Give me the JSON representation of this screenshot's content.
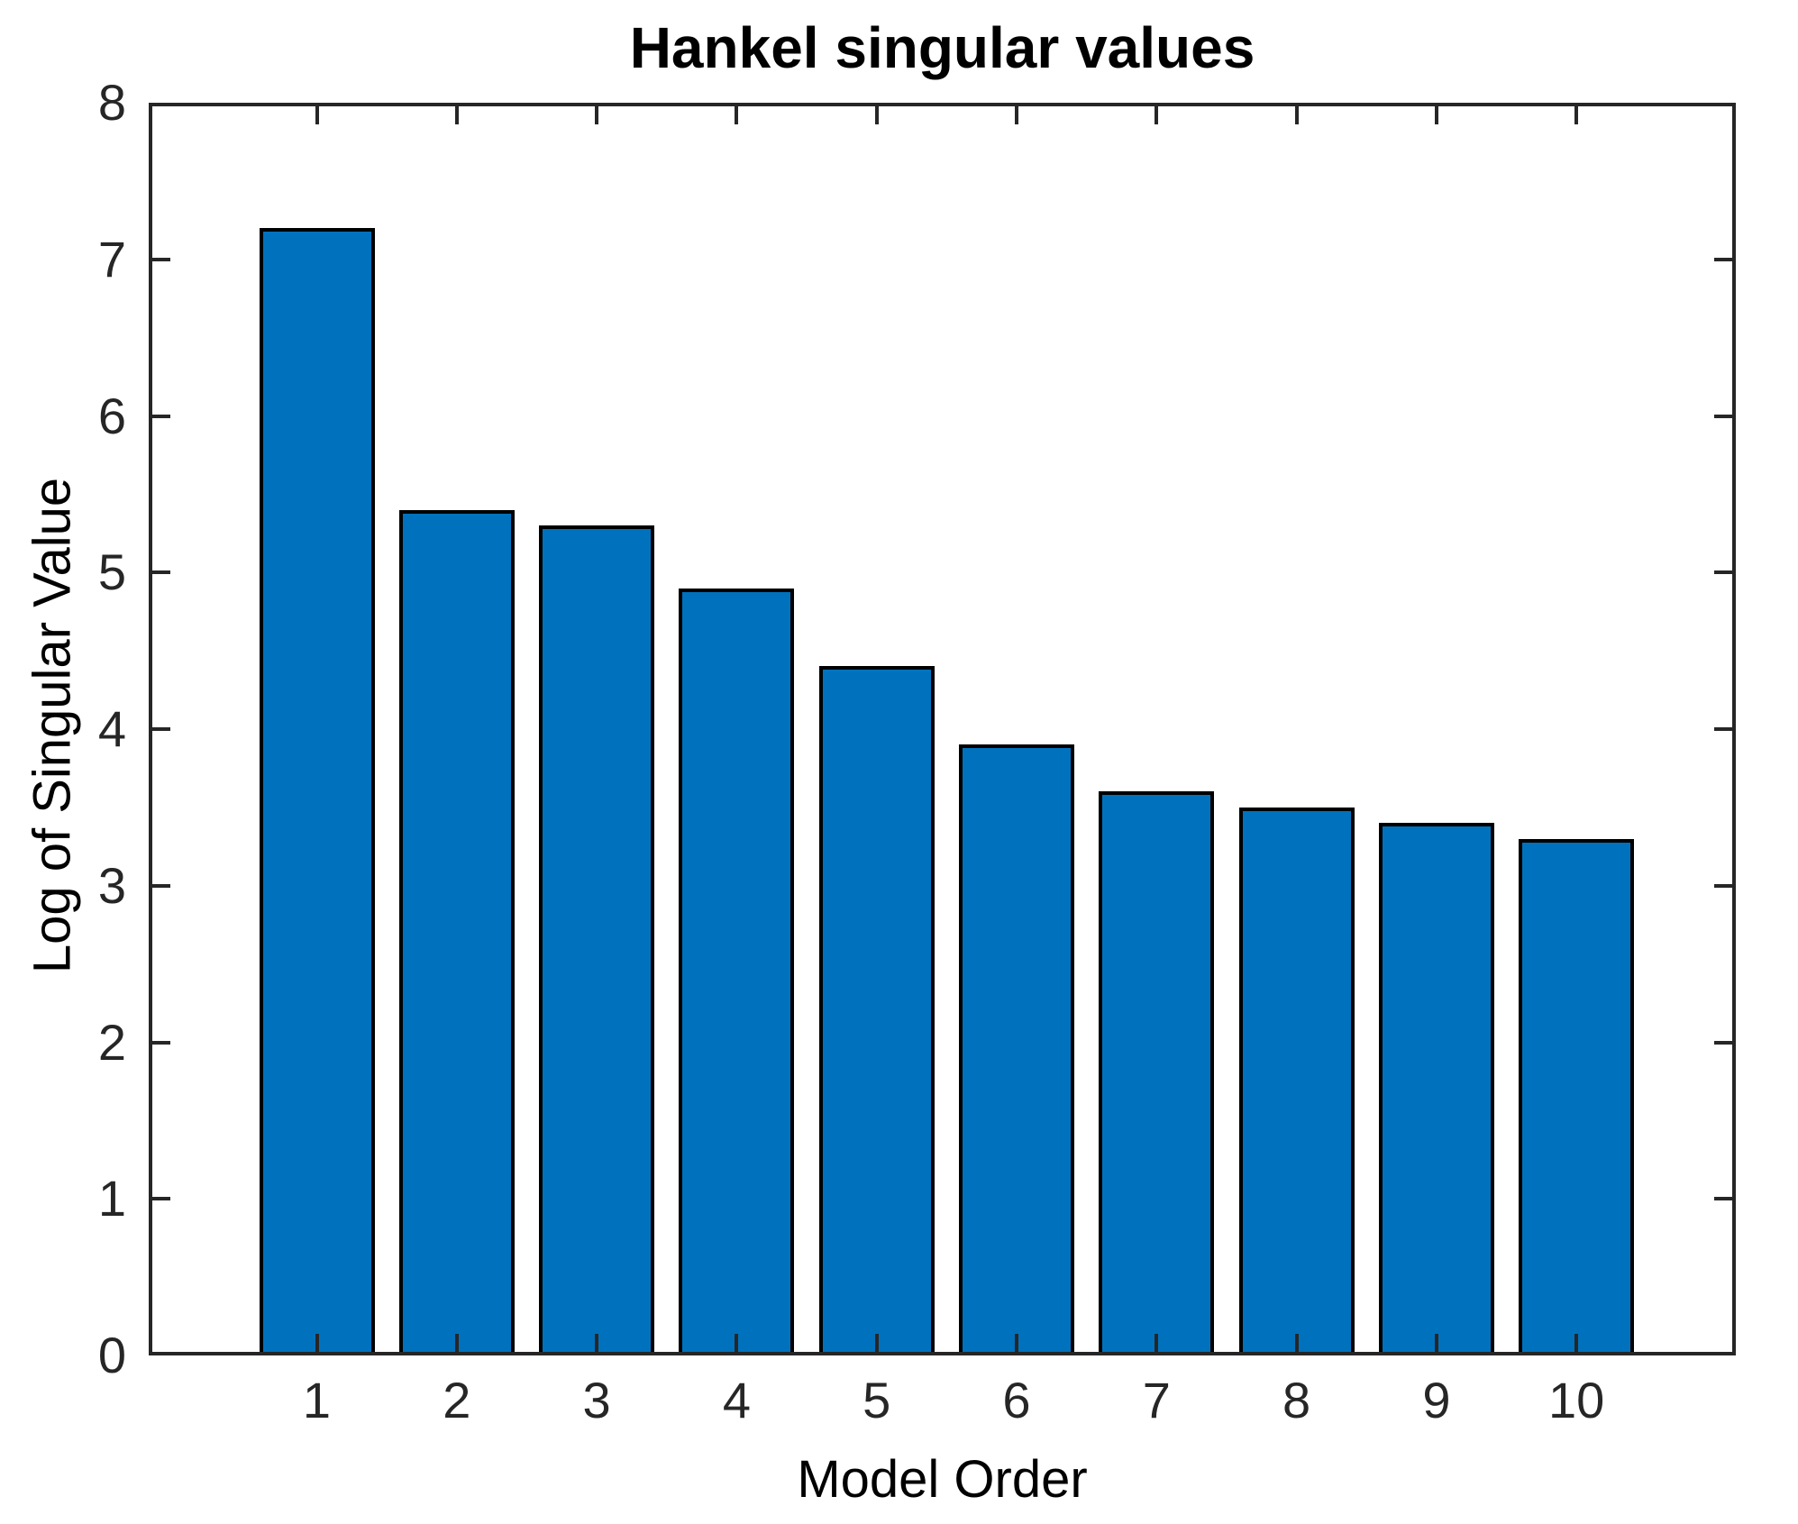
{
  "chart_data": {
    "type": "bar",
    "title": "Hankel singular values",
    "xlabel": "Model Order",
    "ylabel": "Log of Singular Value",
    "categories": [
      1,
      2,
      3,
      4,
      5,
      6,
      7,
      8,
      9,
      10
    ],
    "xticklabels": [
      "1",
      "2",
      "3",
      "4",
      "5",
      "6",
      "7",
      "8",
      "9",
      "10"
    ],
    "values": [
      7.2,
      5.4,
      5.3,
      4.9,
      4.4,
      3.9,
      3.6,
      3.5,
      3.4,
      3.3
    ],
    "ylim": [
      0,
      8
    ],
    "yticks": [
      0,
      1,
      2,
      3,
      4,
      5,
      6,
      7,
      8
    ],
    "yticklabels": [
      "0",
      "1",
      "2",
      "3",
      "4",
      "5",
      "6",
      "7",
      "8"
    ],
    "grid": false,
    "legend": null,
    "bar_color": "#0072BD",
    "bar_edge_color": "#000000",
    "axis_color": "#262626",
    "tick_label_color": "#262626",
    "title_color": "#000000",
    "bar_width_ratio": 0.8,
    "tick_direction": "in",
    "box": "on"
  }
}
